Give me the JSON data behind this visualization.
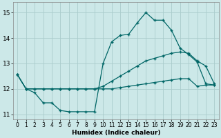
{
  "xlabel": "Humidex (Indice chaleur)",
  "bg_color": "#cce8e8",
  "grid_color": "#aacccc",
  "line_color": "#006666",
  "xlim": [
    -0.5,
    23.5
  ],
  "ylim": [
    10.8,
    15.4
  ],
  "yticks": [
    11,
    12,
    13,
    14,
    15
  ],
  "xticks": [
    0,
    1,
    2,
    3,
    4,
    5,
    6,
    7,
    8,
    9,
    10,
    11,
    12,
    13,
    14,
    15,
    16,
    17,
    18,
    19,
    20,
    21,
    22,
    23
  ],
  "curve_top": {
    "x": [
      0,
      1,
      2,
      3,
      4,
      5,
      6,
      7,
      8,
      9,
      10,
      11,
      12,
      13,
      14,
      15,
      16,
      17,
      18,
      19,
      20,
      21,
      22,
      23
    ],
    "y": [
      12.55,
      12.0,
      11.85,
      11.45,
      11.45,
      11.15,
      11.1,
      11.1,
      11.1,
      11.1,
      13.0,
      13.85,
      14.1,
      14.15,
      14.6,
      15.0,
      14.7,
      14.7,
      14.3,
      13.6,
      13.35,
      13.05,
      12.2,
      12.15
    ]
  },
  "curve_mid": {
    "x": [
      0,
      1,
      2,
      3,
      4,
      5,
      6,
      7,
      8,
      9,
      10,
      11,
      12,
      13,
      14,
      15,
      16,
      17,
      18,
      19,
      20,
      21,
      22,
      23
    ],
    "y": [
      12.55,
      12.0,
      12.0,
      12.0,
      12.0,
      12.0,
      12.0,
      12.0,
      12.0,
      12.0,
      12.1,
      12.3,
      12.5,
      12.7,
      12.9,
      13.1,
      13.2,
      13.3,
      13.4,
      13.45,
      13.4,
      13.1,
      12.9,
      12.2
    ]
  },
  "curve_bot": {
    "x": [
      0,
      1,
      2,
      3,
      4,
      5,
      6,
      7,
      8,
      9,
      10,
      11,
      12,
      13,
      14,
      15,
      16,
      17,
      18,
      19,
      20,
      21,
      22,
      23
    ],
    "y": [
      12.55,
      12.0,
      12.0,
      12.0,
      12.0,
      12.0,
      12.0,
      12.0,
      12.0,
      12.0,
      12.0,
      12.0,
      12.05,
      12.1,
      12.15,
      12.2,
      12.25,
      12.3,
      12.35,
      12.4,
      12.4,
      12.1,
      12.15,
      12.15
    ]
  }
}
